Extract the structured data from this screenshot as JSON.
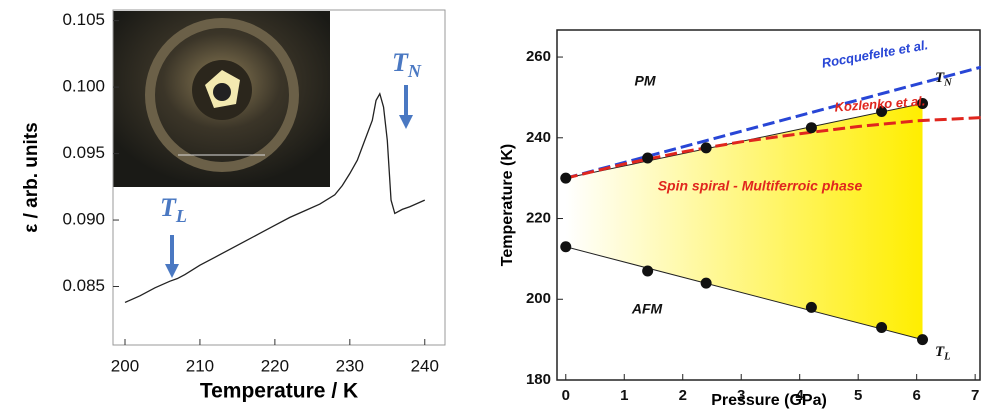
{
  "chart_data": [
    {
      "type": "line",
      "x_label": "Temperature  /  K",
      "y_label": "ε  /  arb. units",
      "x": [
        200,
        202,
        204,
        206,
        207,
        208,
        210,
        212,
        214,
        216,
        218,
        220,
        222,
        224,
        226,
        228,
        229,
        230,
        231,
        232,
        233,
        233.5,
        234,
        234.5,
        235,
        235.5,
        236,
        237,
        238,
        240
      ],
      "values": [
        0.0838,
        0.0843,
        0.0849,
        0.0854,
        0.0856,
        0.0859,
        0.0866,
        0.0872,
        0.0878,
        0.0884,
        0.089,
        0.0896,
        0.0902,
        0.0907,
        0.0912,
        0.0919,
        0.0926,
        0.0935,
        0.0945,
        0.096,
        0.0975,
        0.099,
        0.0995,
        0.0985,
        0.096,
        0.0915,
        0.0905,
        0.0908,
        0.091,
        0.0915
      ],
      "color": "#222222",
      "xlim": [
        198.4,
        242.7
      ],
      "xticks": [
        200,
        210,
        220,
        230,
        240
      ],
      "ylim": [
        0.0806,
        0.1058
      ],
      "yticks": [
        0.085,
        {
          "value": 0.09,
          "label": "0.090"
        },
        0.095,
        {
          "value": 0.1,
          "label": "0.100"
        },
        0.105
      ],
      "annotations": [
        {
          "text": "T",
          "sub": "L"
        },
        {
          "text": "T",
          "sub": "N"
        }
      ],
      "annotation_color": "#4a78c2"
    },
    {
      "type": "scatter",
      "x_label": "Pressure (GPa)",
      "y_label": "Temperature (K)",
      "xlim": [
        -0.15,
        7.1
      ],
      "xticks": [
        0,
        1,
        2,
        3,
        4,
        5,
        6,
        7
      ],
      "ylim": [
        180,
        266.7
      ],
      "yticks": [
        180,
        200,
        220,
        240,
        260
      ],
      "points": [
        {
          "label": {
            "text": "T",
            "sub": "N"
          },
          "x": [
            0,
            1.4,
            2.4,
            4.2,
            5.4,
            6.1
          ],
          "values": [
            230,
            235,
            237.5,
            242.5,
            246.5,
            248.5
          ]
        },
        {
          "label": {
            "text": "T",
            "sub": "L"
          },
          "x": [
            0,
            1.4,
            2.4,
            4.2,
            5.4,
            6.1
          ],
          "values": [
            213,
            207,
            204,
            198,
            193,
            190
          ]
        }
      ],
      "fits": [
        {
          "x": [
            0,
            6.1
          ],
          "values": [
            230,
            248.5
          ]
        },
        {
          "x": [
            0,
            6.1
          ],
          "values": [
            213,
            190
          ]
        }
      ],
      "series": [
        {
          "name": "Rocquefelte et al.",
          "color": "#2846d6",
          "x": [
            0,
            7.1
          ],
          "values": [
            230,
            257.5
          ]
        },
        {
          "name": "Kozlenko et al.",
          "color": "#e0261e",
          "x": [
            0,
            1,
            2,
            3,
            4,
            5,
            6,
            7.1
          ],
          "values": [
            230,
            233.5,
            236.5,
            239,
            241,
            242.8,
            244.2,
            245
          ]
        }
      ],
      "regions": [
        "PM",
        "Spin spiral - Multiferroic phase",
        "AFM"
      ],
      "region_colors": [
        "#111111",
        "#e0261e",
        "#111111"
      ]
    }
  ]
}
